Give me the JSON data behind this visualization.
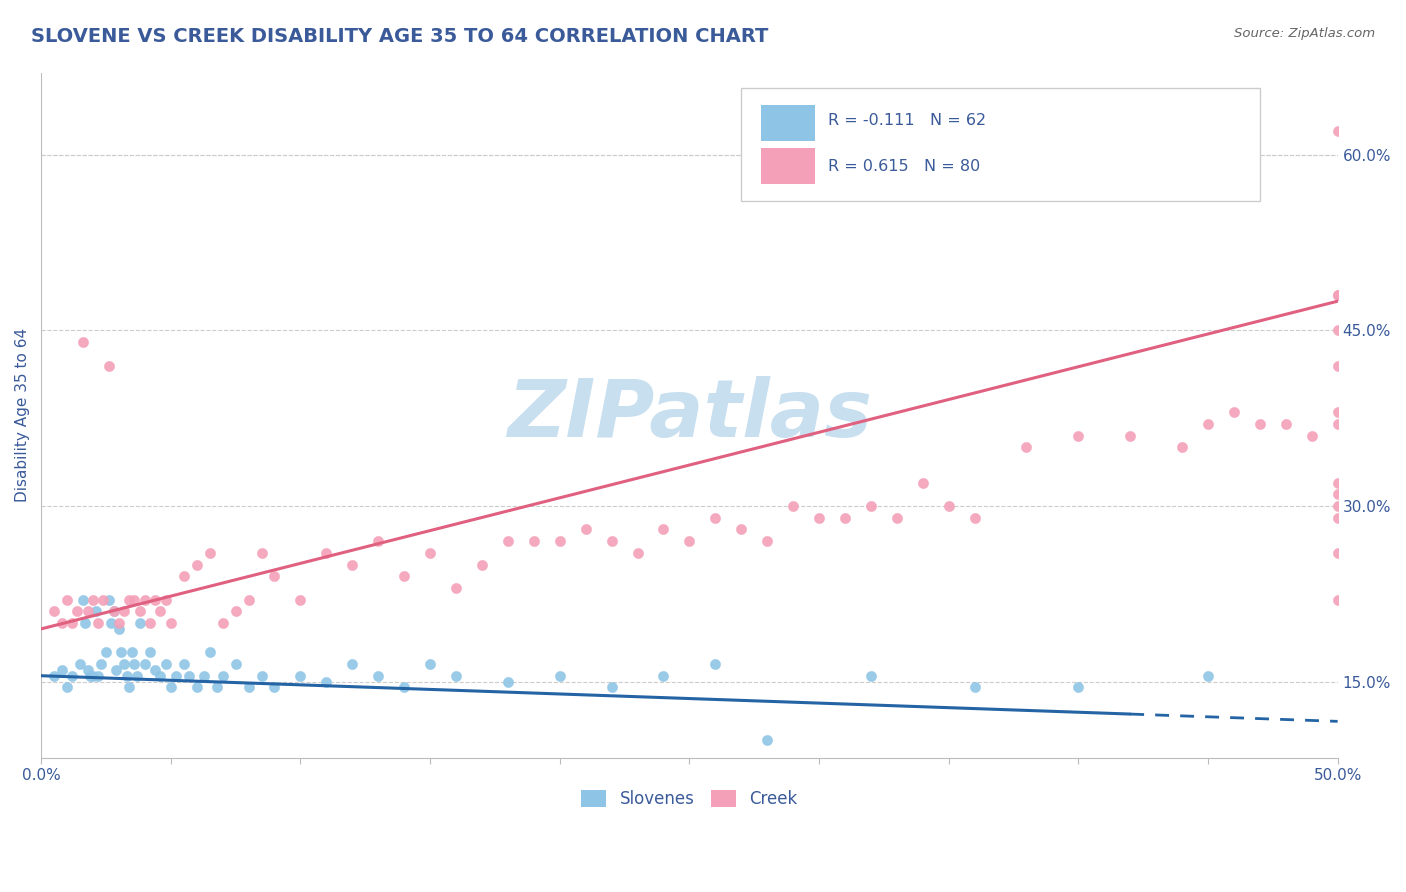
{
  "title": "SLOVENE VS CREEK DISABILITY AGE 35 TO 64 CORRELATION CHART",
  "source_text": "Source: ZipAtlas.com",
  "ylabel": "Disability Age 35 to 64",
  "xlim": [
    0.0,
    0.5
  ],
  "ylim": [
    0.085,
    0.67
  ],
  "y_ticks_right": [
    0.15,
    0.3,
    0.45,
    0.6
  ],
  "y_tick_labels_right": [
    "15.0%",
    "30.0%",
    "45.0%",
    "60.0%"
  ],
  "slovene_color": "#8ec5e6",
  "creek_color": "#f4a0b8",
  "slovene_line_color": "#2464a4",
  "creek_line_color": "#e06080",
  "title_color": "#3a5a9a",
  "axis_color": "#3a5a9a",
  "label_color": "#3a5a9a",
  "watermark": "ZIPatlas",
  "watermark_color": "#c8dff0",
  "background_color": "#ffffff",
  "grid_color": "#cccccc",
  "slovene_R": -0.111,
  "slovene_N": 62,
  "creek_R": 0.615,
  "creek_N": 80,
  "sl_x": [
    0.005,
    0.008,
    0.01,
    0.012,
    0.015,
    0.016,
    0.017,
    0.018,
    0.019,
    0.02,
    0.021,
    0.022,
    0.023,
    0.025,
    0.026,
    0.027,
    0.028,
    0.029,
    0.03,
    0.031,
    0.032,
    0.033,
    0.034,
    0.035,
    0.036,
    0.037,
    0.038,
    0.04,
    0.042,
    0.044,
    0.046,
    0.048,
    0.05,
    0.052,
    0.055,
    0.057,
    0.06,
    0.063,
    0.065,
    0.068,
    0.07,
    0.075,
    0.08,
    0.085,
    0.09,
    0.1,
    0.11,
    0.12,
    0.13,
    0.14,
    0.15,
    0.16,
    0.18,
    0.2,
    0.22,
    0.24,
    0.26,
    0.28,
    0.32,
    0.36,
    0.4,
    0.45
  ],
  "sl_y": [
    0.155,
    0.16,
    0.145,
    0.155,
    0.165,
    0.22,
    0.2,
    0.16,
    0.155,
    0.155,
    0.21,
    0.155,
    0.165,
    0.175,
    0.22,
    0.2,
    0.21,
    0.16,
    0.195,
    0.175,
    0.165,
    0.155,
    0.145,
    0.175,
    0.165,
    0.155,
    0.2,
    0.165,
    0.175,
    0.16,
    0.155,
    0.165,
    0.145,
    0.155,
    0.165,
    0.155,
    0.145,
    0.155,
    0.175,
    0.145,
    0.155,
    0.165,
    0.145,
    0.155,
    0.145,
    0.155,
    0.15,
    0.165,
    0.155,
    0.145,
    0.165,
    0.155,
    0.15,
    0.155,
    0.145,
    0.155,
    0.165,
    0.1,
    0.155,
    0.145,
    0.145,
    0.155
  ],
  "cr_x": [
    0.005,
    0.008,
    0.01,
    0.012,
    0.014,
    0.016,
    0.018,
    0.02,
    0.022,
    0.024,
    0.026,
    0.028,
    0.03,
    0.032,
    0.034,
    0.036,
    0.038,
    0.04,
    0.042,
    0.044,
    0.046,
    0.048,
    0.05,
    0.055,
    0.06,
    0.065,
    0.07,
    0.075,
    0.08,
    0.085,
    0.09,
    0.1,
    0.11,
    0.12,
    0.13,
    0.14,
    0.15,
    0.16,
    0.17,
    0.18,
    0.19,
    0.2,
    0.21,
    0.22,
    0.23,
    0.24,
    0.25,
    0.26,
    0.27,
    0.28,
    0.29,
    0.3,
    0.31,
    0.32,
    0.33,
    0.34,
    0.35,
    0.36,
    0.38,
    0.4,
    0.42,
    0.44,
    0.45,
    0.46,
    0.47,
    0.48,
    0.49,
    0.5,
    0.5,
    0.5,
    0.5,
    0.5,
    0.5,
    0.5,
    0.5,
    0.5,
    0.5,
    0.5,
    0.5,
    0.5
  ],
  "cr_y": [
    0.21,
    0.2,
    0.22,
    0.2,
    0.21,
    0.44,
    0.21,
    0.22,
    0.2,
    0.22,
    0.42,
    0.21,
    0.2,
    0.21,
    0.22,
    0.22,
    0.21,
    0.22,
    0.2,
    0.22,
    0.21,
    0.22,
    0.2,
    0.24,
    0.25,
    0.26,
    0.2,
    0.21,
    0.22,
    0.26,
    0.24,
    0.22,
    0.26,
    0.25,
    0.27,
    0.24,
    0.26,
    0.23,
    0.25,
    0.27,
    0.27,
    0.27,
    0.28,
    0.27,
    0.26,
    0.28,
    0.27,
    0.29,
    0.28,
    0.27,
    0.3,
    0.29,
    0.29,
    0.3,
    0.29,
    0.32,
    0.3,
    0.29,
    0.35,
    0.36,
    0.36,
    0.35,
    0.37,
    0.38,
    0.37,
    0.37,
    0.36,
    0.32,
    0.22,
    0.29,
    0.62,
    0.48,
    0.26,
    0.3,
    0.37,
    0.42,
    0.31,
    0.48,
    0.38,
    0.45
  ],
  "sl_trend_x0": 0.0,
  "sl_trend_x_solid_end": 0.42,
  "sl_trend_x_dash_end": 0.5,
  "sl_trend_y0": 0.155,
  "sl_trend_y_end": 0.116,
  "cr_trend_x0": 0.0,
  "cr_trend_x_end": 0.5,
  "cr_trend_y0": 0.195,
  "cr_trend_y_end": 0.475
}
